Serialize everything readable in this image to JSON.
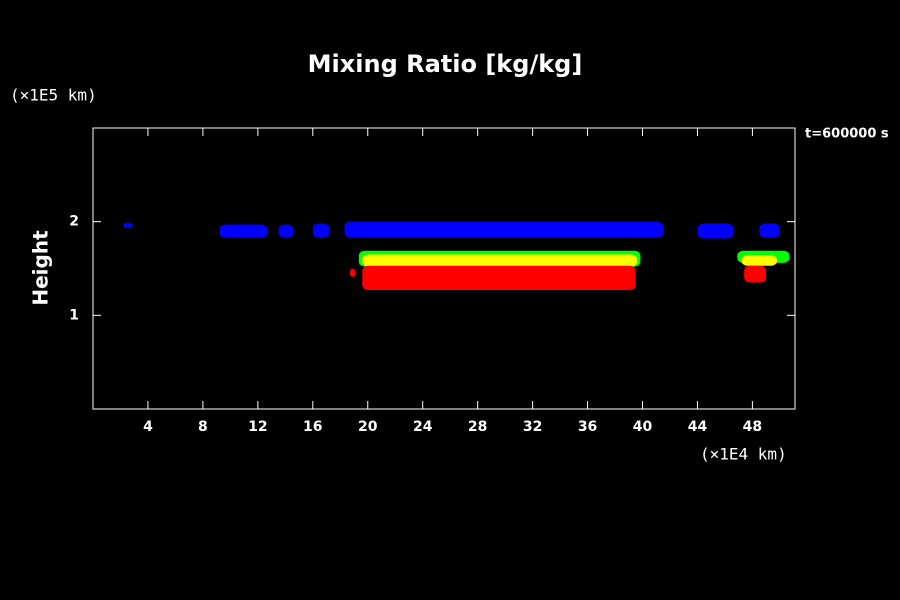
{
  "chart_data": {
    "type": "contour",
    "title": "Mixing Ratio [kg/kg]",
    "ylabel": "Height",
    "yunit": "(×1E5 km)",
    "xunit": "(×1E4 km)",
    "annotation": "t=600000 s",
    "xlim": [
      0,
      51.1
    ],
    "xticks": [
      4,
      8,
      12,
      16,
      20,
      24,
      28,
      32,
      36,
      40,
      44,
      48
    ],
    "ylim": [
      0,
      3
    ],
    "yticks": [
      1,
      2
    ],
    "regions": [
      {
        "color": "#0000ff",
        "x": [
          2.2,
          2.9
        ],
        "y": [
          1.93,
          1.99
        ]
      },
      {
        "color": "#0000ff",
        "x": [
          9.2,
          12.7
        ],
        "y": [
          1.83,
          1.97
        ]
      },
      {
        "color": "#0000ff",
        "x": [
          13.5,
          14.6
        ],
        "y": [
          1.83,
          1.97
        ]
      },
      {
        "color": "#0000ff",
        "x": [
          16.0,
          17.2
        ],
        "y": [
          1.83,
          1.98
        ]
      },
      {
        "color": "#0000ff",
        "x": [
          18.3,
          41.5
        ],
        "y": [
          1.83,
          2.0
        ]
      },
      {
        "color": "#0000ff",
        "x": [
          44.0,
          46.6
        ],
        "y": [
          1.82,
          1.98
        ]
      },
      {
        "color": "#0000ff",
        "x": [
          48.5,
          50.0
        ],
        "y": [
          1.83,
          1.98
        ]
      },
      {
        "color": "#00ff00",
        "x": [
          19.35,
          39.85
        ],
        "y": [
          1.52,
          1.69
        ]
      },
      {
        "color": "#ffff00",
        "x": [
          19.6,
          39.6
        ],
        "y": [
          1.52,
          1.65
        ]
      },
      {
        "color": "#ff0000",
        "x": [
          19.6,
          39.5
        ],
        "y": [
          1.27,
          1.53
        ]
      },
      {
        "color": "#ff0000",
        "x": [
          18.7,
          19.1
        ],
        "y": [
          1.41,
          1.5
        ]
      },
      {
        "color": "#00ff00",
        "x": [
          46.9,
          50.7
        ],
        "y": [
          1.56,
          1.69
        ]
      },
      {
        "color": "#ffff00",
        "x": [
          47.2,
          49.8
        ],
        "y": [
          1.53,
          1.64
        ]
      },
      {
        "color": "#ff0000",
        "x": [
          47.4,
          49.0
        ],
        "y": [
          1.35,
          1.53
        ]
      }
    ]
  }
}
